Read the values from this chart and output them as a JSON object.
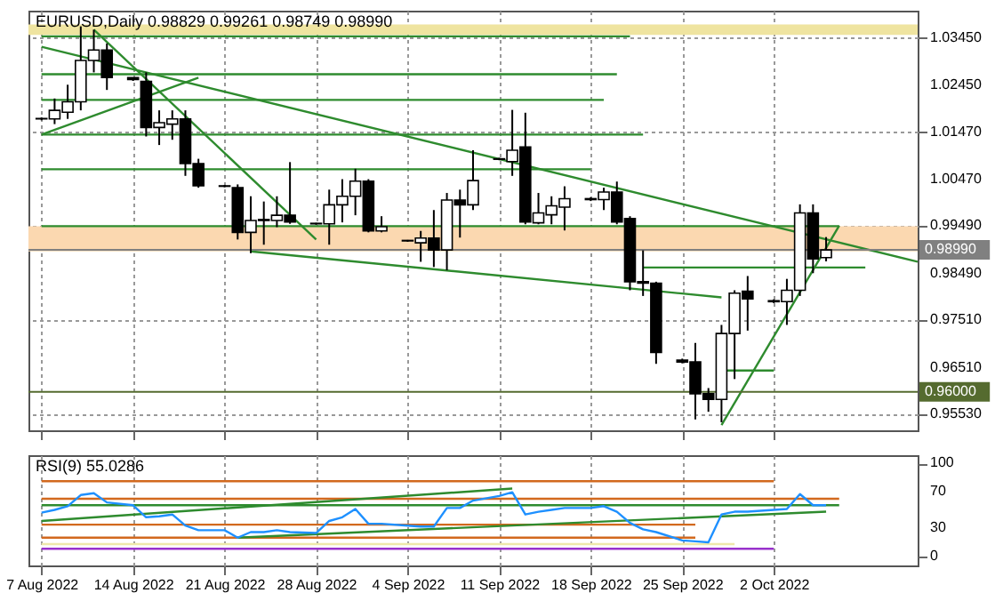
{
  "chart_data": [
    {
      "type": "candlestick",
      "title": "EURUSD,Daily 0.98829 0.99261 0.98749 0.98990",
      "x": [
        "2022-08-07",
        "2022-08-08",
        "2022-08-09",
        "2022-08-10",
        "2022-08-11",
        "2022-08-12",
        "2022-08-14",
        "2022-08-15",
        "2022-08-16",
        "2022-08-17",
        "2022-08-18",
        "2022-08-19",
        "2022-08-21",
        "2022-08-22",
        "2022-08-23",
        "2022-08-24",
        "2022-08-25",
        "2022-08-26",
        "2022-08-28",
        "2022-08-29",
        "2022-08-30",
        "2022-08-31",
        "2022-09-01",
        "2022-09-02",
        "2022-09-04",
        "2022-09-05",
        "2022-09-06",
        "2022-09-07",
        "2022-09-08",
        "2022-09-09",
        "2022-09-11",
        "2022-09-12",
        "2022-09-13",
        "2022-09-14",
        "2022-09-15",
        "2022-09-16",
        "2022-09-18",
        "2022-09-19",
        "2022-09-20",
        "2022-09-21",
        "2022-09-22",
        "2022-09-23",
        "2022-09-25",
        "2022-09-26",
        "2022-09-27",
        "2022-09-28",
        "2022-09-29",
        "2022-09-30",
        "2022-10-02",
        "2022-10-03",
        "2022-10-04",
        "2022-10-05",
        "2022-10-06"
      ],
      "ohlc": [
        [
          1.0175,
          1.0178,
          1.0172,
          1.0176
        ],
        [
          1.0175,
          1.0218,
          1.0164,
          1.0193
        ],
        [
          1.0189,
          1.0247,
          1.0175,
          1.0211
        ],
        [
          1.0211,
          1.037,
          1.0193,
          1.0298
        ],
        [
          1.0298,
          1.0363,
          1.0273,
          1.032
        ],
        [
          1.032,
          1.0334,
          1.0236,
          1.0262
        ],
        [
          1.0262,
          1.0262,
          1.0255,
          1.0258
        ],
        [
          1.0254,
          1.0273,
          1.0138,
          1.0157
        ],
        [
          1.0157,
          1.0193,
          1.012,
          1.0167
        ],
        [
          1.0164,
          1.0193,
          1.0131,
          1.0175
        ],
        [
          1.0175,
          1.0193,
          1.0055,
          1.0081
        ],
        [
          1.0081,
          1.0091,
          1.003,
          1.0034
        ],
        [
          1.0034,
          1.0036,
          1.0031,
          1.0033
        ],
        [
          1.003,
          1.0037,
          0.9921,
          0.9936
        ],
        [
          0.9936,
          1.0012,
          0.9892,
          0.9961
        ],
        [
          0.9961,
          1.0001,
          0.991,
          0.9963
        ],
        [
          0.9961,
          1.0012,
          0.9947,
          0.9972
        ],
        [
          0.9972,
          1.0084,
          0.9954,
          0.9958
        ],
        [
          0.9955,
          0.9956,
          0.9952,
          0.9954
        ],
        [
          0.9954,
          1.0026,
          0.991,
          0.9994
        ],
        [
          0.9994,
          1.0048,
          0.9957,
          1.0012
        ],
        [
          1.0012,
          1.007,
          0.9972,
          1.0044
        ],
        [
          1.0044,
          1.0048,
          0.9936,
          0.9939
        ],
        [
          0.9939,
          0.997,
          0.9936,
          0.9948
        ],
        [
          0.9919,
          0.992,
          0.9916,
          0.9918
        ],
        [
          0.9914,
          0.9939,
          0.9874,
          0.9924
        ],
        [
          0.9924,
          0.9983,
          0.9863,
          0.9899
        ],
        [
          0.9899,
          1.0019,
          0.9856,
          1.0004
        ],
        [
          1.0004,
          1.0026,
          0.9925,
          0.9994
        ],
        [
          0.9994,
          1.0109,
          0.9983,
          1.0045
        ],
        [
          1.0091,
          1.0093,
          1.0088,
          1.009
        ],
        [
          1.0085,
          1.0194,
          1.0055,
          1.0109
        ],
        [
          1.0116,
          1.0188,
          0.9953,
          0.9958
        ],
        [
          0.9956,
          1.0019,
          0.9953,
          0.9977
        ],
        [
          0.9973,
          1.0012,
          0.9953,
          0.9992
        ],
        [
          0.9989,
          1.0033,
          0.994,
          1.0007
        ],
        [
          1.0007,
          1.001,
          1.0002,
          1.0005
        ],
        [
          1.0005,
          1.003,
          0.9983,
          1.0021
        ],
        [
          1.0021,
          1.0043,
          0.9953,
          0.9958
        ],
        [
          0.9965,
          0.997,
          0.9814,
          0.9832
        ],
        [
          0.9832,
          0.9898,
          0.9802,
          0.9829
        ],
        [
          0.9829,
          0.9832,
          0.9659,
          0.9683
        ],
        [
          0.9667,
          0.967,
          0.966,
          0.9663
        ],
        [
          0.9663,
          0.9703,
          0.9542,
          0.9596
        ],
        [
          0.9596,
          0.9608,
          0.9558,
          0.9584
        ],
        [
          0.9584,
          0.9741,
          0.9536,
          0.9723
        ],
        [
          0.9723,
          0.9814,
          0.9627,
          0.9808
        ],
        [
          0.9812,
          0.9844,
          0.9729,
          0.9796
        ],
        [
          0.979,
          0.9795,
          0.9787,
          0.9792
        ],
        [
          0.979,
          0.9838,
          0.9741,
          0.9814
        ],
        [
          0.9814,
          0.9995,
          0.9802,
          0.9977
        ],
        [
          0.9977,
          0.9995,
          0.985,
          0.988
        ],
        [
          0.98829,
          0.99261,
          0.98749,
          0.9899
        ]
      ],
      "series": [
        {
          "type": "line",
          "color": "#2e8b2e",
          "x": [
            "2022-08-07",
            "2022-09-21"
          ],
          "values": [
            1.0349,
            1.0349
          ]
        },
        {
          "type": "line",
          "color": "#2e8b2e",
          "x": [
            "2022-08-07",
            "2022-09-20"
          ],
          "values": [
            1.0269,
            1.0269
          ]
        },
        {
          "type": "line",
          "color": "#2e8b2e",
          "x": [
            "2022-08-07",
            "2022-09-19"
          ],
          "values": [
            1.0215,
            1.0215
          ]
        },
        {
          "type": "line",
          "color": "#2e8b2e",
          "x": [
            "2022-08-07",
            "2022-09-22"
          ],
          "values": [
            1.0142,
            1.0142
          ]
        },
        {
          "type": "line",
          "color": "#2e8b2e",
          "x": [
            "2022-08-07",
            "2022-09-18"
          ],
          "values": [
            1.0069,
            1.0069
          ]
        },
        {
          "type": "line",
          "color": "#2e8b2e",
          "x": [
            "2022-08-07",
            "2022-10-07"
          ],
          "values": [
            0.9949,
            0.9949
          ]
        },
        {
          "type": "line",
          "color": "#2e8b2e",
          "x": [
            "2022-09-22",
            "2022-10-09"
          ],
          "values": [
            0.9862,
            0.9862
          ]
        },
        {
          "type": "line",
          "color": "#2e8b2e",
          "x": [
            "2022-09-28",
            "2022-10-02"
          ],
          "values": [
            0.9645,
            0.9645
          ]
        },
        {
          "type": "line",
          "color": "#2e8b2e",
          "x": [
            "2022-08-07",
            "2022-10-13"
          ],
          "values": [
            1.0327,
            0.9874
          ]
        },
        {
          "type": "line",
          "color": "#2e8b2e",
          "x": [
            "2022-08-07",
            "2022-08-19"
          ],
          "values": [
            1.0142,
            1.0262
          ]
        },
        {
          "type": "line",
          "color": "#2e8b2e",
          "x": [
            "2022-08-11",
            "2022-08-28"
          ],
          "values": [
            1.0363,
            0.9921
          ]
        },
        {
          "type": "line",
          "color": "#2e8b2e",
          "x": [
            "2022-08-23",
            "2022-09-28"
          ],
          "values": [
            0.9896,
            0.9799
          ]
        },
        {
          "type": "line",
          "color": "#2e8b2e",
          "x": [
            "2022-09-28",
            "2022-10-07"
          ],
          "values": [
            0.953,
            0.995
          ]
        }
      ],
      "bands": [
        {
          "axis": "y",
          "from": 1.0352,
          "to": 1.0374,
          "color": "#efe4a0"
        },
        {
          "axis": "y",
          "from": 0.9896,
          "to": 0.9949,
          "color": "#fbd8b0"
        }
      ],
      "ref_lines": [
        {
          "axis": "y",
          "value": 0.9899,
          "label": "0.98990",
          "color": "#808080"
        },
        {
          "axis": "y",
          "value": 0.96,
          "label": "0.96000",
          "color": "#556b2f"
        }
      ],
      "xlim": [
        "2022-08-06",
        "2022-10-13"
      ],
      "ylim": [
        0.9519,
        1.0403
      ],
      "xticks": [
        {
          "value": "2022-08-07",
          "label": null
        },
        {
          "value": "2022-08-14",
          "label": null
        },
        {
          "value": "2022-08-21",
          "label": null
        },
        {
          "value": "2022-08-28",
          "label": null
        },
        {
          "value": "2022-09-04",
          "label": null
        },
        {
          "value": "2022-09-11",
          "label": null
        },
        {
          "value": "2022-09-18",
          "label": null
        },
        {
          "value": "2022-09-25",
          "label": null
        },
        {
          "value": "2022-10-02",
          "label": null
        }
      ],
      "yticks": [
        {
          "value": 1.0345,
          "label": "1.03450"
        },
        {
          "value": 1.0245,
          "label": "1.02450"
        },
        {
          "value": 1.0147,
          "label": "1.01470"
        },
        {
          "value": 1.0047,
          "label": "1.00470"
        },
        {
          "value": 0.9949,
          "label": "0.99490"
        },
        {
          "value": 0.9849,
          "label": "0.98490"
        },
        {
          "value": 0.9751,
          "label": "0.97510"
        },
        {
          "value": 0.9651,
          "label": "0.96510"
        },
        {
          "value": 0.9553,
          "label": "0.95530"
        }
      ],
      "grid": true,
      "tick_labels": "y"
    },
    {
      "type": "line",
      "title": "RSI(9) 55.0286",
      "series": [
        {
          "color": "#d2691e",
          "x": [
            "2022-08-07",
            "2022-10-02"
          ],
          "values": [
            81,
            81
          ]
        },
        {
          "color": "#d2691e",
          "x": [
            "2022-08-07",
            "2022-10-07"
          ],
          "values": [
            62,
            62
          ]
        },
        {
          "color": "#d2691e",
          "x": [
            "2022-08-07",
            "2022-09-26"
          ],
          "values": [
            34,
            34
          ]
        },
        {
          "color": "#d2691e",
          "x": [
            "2022-08-07",
            "2022-09-26"
          ],
          "values": [
            20,
            20
          ]
        },
        {
          "color": "#eee8aa",
          "x": [
            "2022-08-07",
            "2022-09-29"
          ],
          "values": [
            13,
            13
          ]
        },
        {
          "color": "#9932cc",
          "x": [
            "2022-08-07",
            "2022-10-02"
          ],
          "values": [
            8,
            8
          ]
        },
        {
          "color": "#2e8b2e",
          "x": [
            "2022-08-07",
            "2022-10-07"
          ],
          "values": [
            55,
            55
          ]
        },
        {
          "color": "#2e8b2e",
          "x": [
            "2022-08-07",
            "2022-09-12"
          ],
          "values": [
            38,
            73
          ]
        },
        {
          "color": "#2e8b2e",
          "x": [
            "2022-08-22",
            "2022-10-06"
          ],
          "values": [
            20,
            48
          ]
        },
        {
          "color": "#1e90ff",
          "x": [
            "2022-08-07",
            "2022-08-08",
            "2022-08-09",
            "2022-08-10",
            "2022-08-11",
            "2022-08-12",
            "2022-08-14",
            "2022-08-15",
            "2022-08-16",
            "2022-08-17",
            "2022-08-18",
            "2022-08-19",
            "2022-08-21",
            "2022-08-22",
            "2022-08-23",
            "2022-08-24",
            "2022-08-25",
            "2022-08-26",
            "2022-08-28",
            "2022-08-29",
            "2022-08-30",
            "2022-08-31",
            "2022-09-01",
            "2022-09-02",
            "2022-09-04",
            "2022-09-05",
            "2022-09-06",
            "2022-09-07",
            "2022-09-08",
            "2022-09-09",
            "2022-09-11",
            "2022-09-12",
            "2022-09-13",
            "2022-09-14",
            "2022-09-15",
            "2022-09-16",
            "2022-09-18",
            "2022-09-19",
            "2022-09-20",
            "2022-09-21",
            "2022-09-22",
            "2022-09-23",
            "2022-09-25",
            "2022-09-26",
            "2022-09-27",
            "2022-09-28",
            "2022-09-29",
            "2022-09-30",
            "2022-10-02",
            "2022-10-03",
            "2022-10-04",
            "2022-10-05",
            "2022-10-06"
          ],
          "values": [
            47,
            50,
            54,
            66,
            68,
            58,
            55,
            42,
            43,
            45,
            33,
            28,
            28,
            20,
            26,
            26,
            28,
            26,
            25,
            38,
            42,
            51,
            35,
            35,
            33,
            32,
            32,
            52,
            52,
            60,
            65,
            69,
            45,
            48,
            50,
            52,
            52,
            54,
            48,
            36,
            29,
            26,
            17,
            16,
            15,
            45,
            48,
            48,
            50,
            51,
            67,
            55,
            55
          ]
        }
      ],
      "xlim": [
        "2022-08-06",
        "2022-10-13"
      ],
      "ylim": [
        -10,
        109
      ],
      "xticks": [
        {
          "value": "2022-08-07",
          "label": "7 Aug 2022"
        },
        {
          "value": "2022-08-14",
          "label": "14 Aug 2022"
        },
        {
          "value": "2022-08-21",
          "label": "21 Aug 2022"
        },
        {
          "value": "2022-08-28",
          "label": "28 Aug 2022"
        },
        {
          "value": "2022-09-04",
          "label": "4 Sep 2022"
        },
        {
          "value": "2022-09-11",
          "label": "11 Sep 2022"
        },
        {
          "value": "2022-09-18",
          "label": "18 Sep 2022"
        },
        {
          "value": "2022-09-25",
          "label": "25 Sep 2022"
        },
        {
          "value": "2022-10-02",
          "label": "2 Oct 2022"
        }
      ],
      "yticks": [
        0,
        30,
        70,
        100
      ],
      "grid": "x"
    }
  ]
}
